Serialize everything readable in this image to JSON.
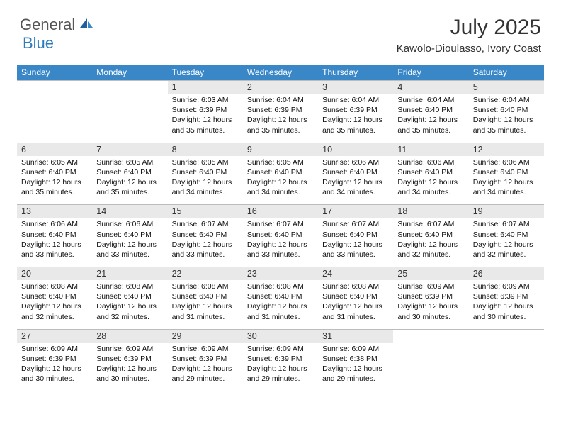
{
  "brand": {
    "general": "General",
    "blue": "Blue"
  },
  "title": "July 2025",
  "location": "Kawolo-Dioulasso, Ivory Coast",
  "colors": {
    "header_bg": "#3a87c8",
    "daynum_bg": "#e9e9e9",
    "border": "#bcbcbc",
    "brand_blue": "#2b7bbf"
  },
  "day_names": [
    "Sunday",
    "Monday",
    "Tuesday",
    "Wednesday",
    "Thursday",
    "Friday",
    "Saturday"
  ],
  "weeks": [
    {
      "nums": [
        "",
        "",
        "1",
        "2",
        "3",
        "4",
        "5"
      ],
      "cells": [
        null,
        null,
        {
          "sunrise": "Sunrise: 6:03 AM",
          "sunset": "Sunset: 6:39 PM",
          "day1": "Daylight: 12 hours",
          "day2": "and 35 minutes."
        },
        {
          "sunrise": "Sunrise: 6:04 AM",
          "sunset": "Sunset: 6:39 PM",
          "day1": "Daylight: 12 hours",
          "day2": "and 35 minutes."
        },
        {
          "sunrise": "Sunrise: 6:04 AM",
          "sunset": "Sunset: 6:39 PM",
          "day1": "Daylight: 12 hours",
          "day2": "and 35 minutes."
        },
        {
          "sunrise": "Sunrise: 6:04 AM",
          "sunset": "Sunset: 6:40 PM",
          "day1": "Daylight: 12 hours",
          "day2": "and 35 minutes."
        },
        {
          "sunrise": "Sunrise: 6:04 AM",
          "sunset": "Sunset: 6:40 PM",
          "day1": "Daylight: 12 hours",
          "day2": "and 35 minutes."
        }
      ]
    },
    {
      "nums": [
        "6",
        "7",
        "8",
        "9",
        "10",
        "11",
        "12"
      ],
      "cells": [
        {
          "sunrise": "Sunrise: 6:05 AM",
          "sunset": "Sunset: 6:40 PM",
          "day1": "Daylight: 12 hours",
          "day2": "and 35 minutes."
        },
        {
          "sunrise": "Sunrise: 6:05 AM",
          "sunset": "Sunset: 6:40 PM",
          "day1": "Daylight: 12 hours",
          "day2": "and 35 minutes."
        },
        {
          "sunrise": "Sunrise: 6:05 AM",
          "sunset": "Sunset: 6:40 PM",
          "day1": "Daylight: 12 hours",
          "day2": "and 34 minutes."
        },
        {
          "sunrise": "Sunrise: 6:05 AM",
          "sunset": "Sunset: 6:40 PM",
          "day1": "Daylight: 12 hours",
          "day2": "and 34 minutes."
        },
        {
          "sunrise": "Sunrise: 6:06 AM",
          "sunset": "Sunset: 6:40 PM",
          "day1": "Daylight: 12 hours",
          "day2": "and 34 minutes."
        },
        {
          "sunrise": "Sunrise: 6:06 AM",
          "sunset": "Sunset: 6:40 PM",
          "day1": "Daylight: 12 hours",
          "day2": "and 34 minutes."
        },
        {
          "sunrise": "Sunrise: 6:06 AM",
          "sunset": "Sunset: 6:40 PM",
          "day1": "Daylight: 12 hours",
          "day2": "and 34 minutes."
        }
      ]
    },
    {
      "nums": [
        "13",
        "14",
        "15",
        "16",
        "17",
        "18",
        "19"
      ],
      "cells": [
        {
          "sunrise": "Sunrise: 6:06 AM",
          "sunset": "Sunset: 6:40 PM",
          "day1": "Daylight: 12 hours",
          "day2": "and 33 minutes."
        },
        {
          "sunrise": "Sunrise: 6:06 AM",
          "sunset": "Sunset: 6:40 PM",
          "day1": "Daylight: 12 hours",
          "day2": "and 33 minutes."
        },
        {
          "sunrise": "Sunrise: 6:07 AM",
          "sunset": "Sunset: 6:40 PM",
          "day1": "Daylight: 12 hours",
          "day2": "and 33 minutes."
        },
        {
          "sunrise": "Sunrise: 6:07 AM",
          "sunset": "Sunset: 6:40 PM",
          "day1": "Daylight: 12 hours",
          "day2": "and 33 minutes."
        },
        {
          "sunrise": "Sunrise: 6:07 AM",
          "sunset": "Sunset: 6:40 PM",
          "day1": "Daylight: 12 hours",
          "day2": "and 33 minutes."
        },
        {
          "sunrise": "Sunrise: 6:07 AM",
          "sunset": "Sunset: 6:40 PM",
          "day1": "Daylight: 12 hours",
          "day2": "and 32 minutes."
        },
        {
          "sunrise": "Sunrise: 6:07 AM",
          "sunset": "Sunset: 6:40 PM",
          "day1": "Daylight: 12 hours",
          "day2": "and 32 minutes."
        }
      ]
    },
    {
      "nums": [
        "20",
        "21",
        "22",
        "23",
        "24",
        "25",
        "26"
      ],
      "cells": [
        {
          "sunrise": "Sunrise: 6:08 AM",
          "sunset": "Sunset: 6:40 PM",
          "day1": "Daylight: 12 hours",
          "day2": "and 32 minutes."
        },
        {
          "sunrise": "Sunrise: 6:08 AM",
          "sunset": "Sunset: 6:40 PM",
          "day1": "Daylight: 12 hours",
          "day2": "and 32 minutes."
        },
        {
          "sunrise": "Sunrise: 6:08 AM",
          "sunset": "Sunset: 6:40 PM",
          "day1": "Daylight: 12 hours",
          "day2": "and 31 minutes."
        },
        {
          "sunrise": "Sunrise: 6:08 AM",
          "sunset": "Sunset: 6:40 PM",
          "day1": "Daylight: 12 hours",
          "day2": "and 31 minutes."
        },
        {
          "sunrise": "Sunrise: 6:08 AM",
          "sunset": "Sunset: 6:40 PM",
          "day1": "Daylight: 12 hours",
          "day2": "and 31 minutes."
        },
        {
          "sunrise": "Sunrise: 6:09 AM",
          "sunset": "Sunset: 6:39 PM",
          "day1": "Daylight: 12 hours",
          "day2": "and 30 minutes."
        },
        {
          "sunrise": "Sunrise: 6:09 AM",
          "sunset": "Sunset: 6:39 PM",
          "day1": "Daylight: 12 hours",
          "day2": "and 30 minutes."
        }
      ]
    },
    {
      "nums": [
        "27",
        "28",
        "29",
        "30",
        "31",
        "",
        ""
      ],
      "cells": [
        {
          "sunrise": "Sunrise: 6:09 AM",
          "sunset": "Sunset: 6:39 PM",
          "day1": "Daylight: 12 hours",
          "day2": "and 30 minutes."
        },
        {
          "sunrise": "Sunrise: 6:09 AM",
          "sunset": "Sunset: 6:39 PM",
          "day1": "Daylight: 12 hours",
          "day2": "and 30 minutes."
        },
        {
          "sunrise": "Sunrise: 6:09 AM",
          "sunset": "Sunset: 6:39 PM",
          "day1": "Daylight: 12 hours",
          "day2": "and 29 minutes."
        },
        {
          "sunrise": "Sunrise: 6:09 AM",
          "sunset": "Sunset: 6:39 PM",
          "day1": "Daylight: 12 hours",
          "day2": "and 29 minutes."
        },
        {
          "sunrise": "Sunrise: 6:09 AM",
          "sunset": "Sunset: 6:38 PM",
          "day1": "Daylight: 12 hours",
          "day2": "and 29 minutes."
        },
        null,
        null
      ]
    }
  ]
}
